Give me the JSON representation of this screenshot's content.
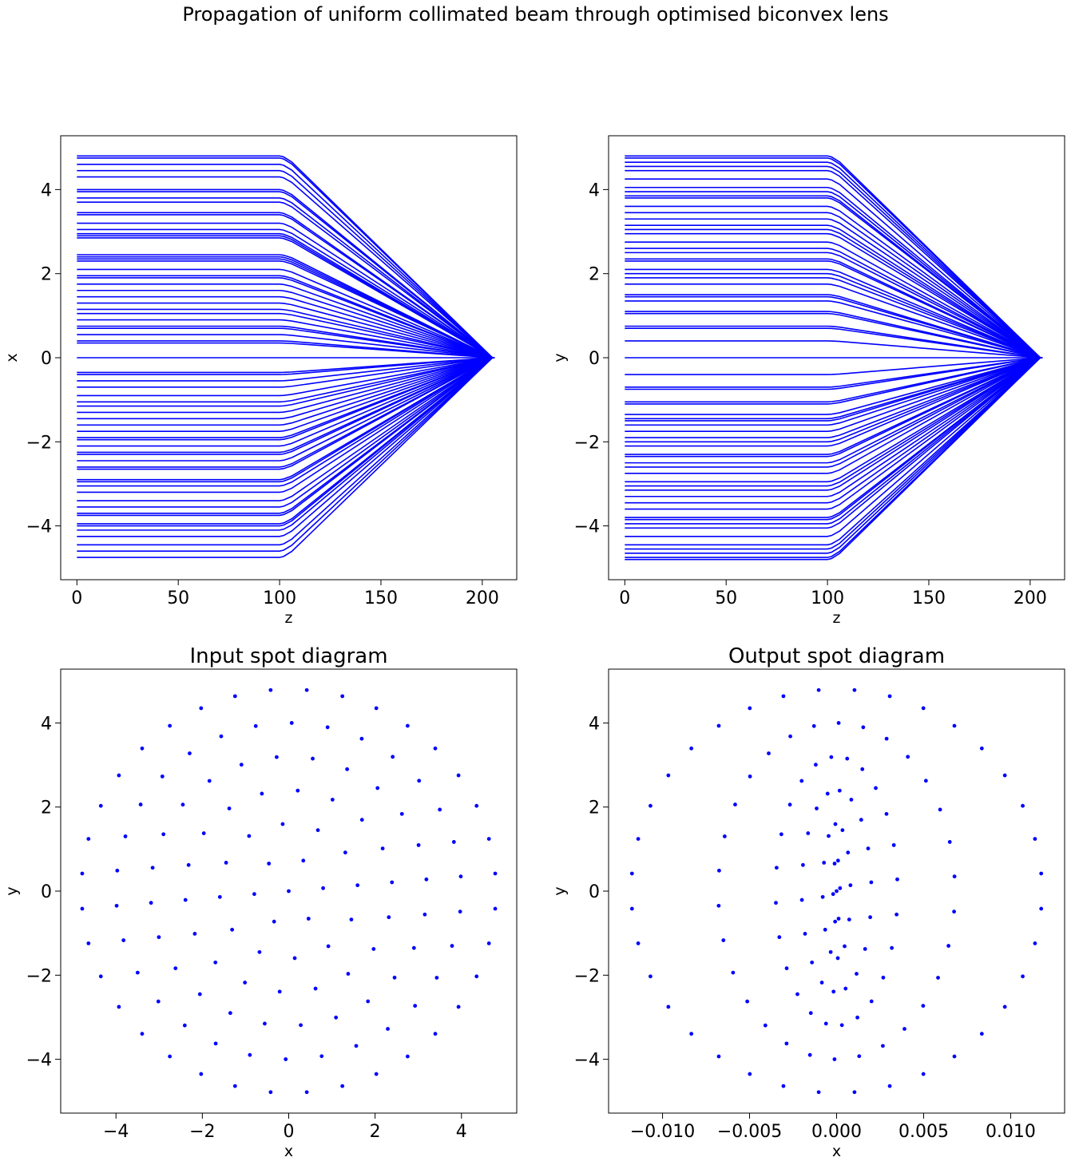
{
  "figure": {
    "title": "Propagation of uniform collimated beam through optimised biconvex lens"
  },
  "colors": {
    "rays": "#0000ff",
    "axes": "#000000",
    "background": "#ffffff"
  },
  "chart_data": [
    {
      "type": "line",
      "title": "",
      "xlabel": "z",
      "ylabel": "x",
      "xlim": [
        -8,
        217
      ],
      "ylim": [
        -5.28,
        5.28
      ],
      "xticks": [
        0,
        50,
        100,
        150,
        200
      ],
      "xtick_labels": [
        "0",
        "50",
        "100",
        "150",
        "200"
      ],
      "yticks": [
        -4,
        -2,
        0,
        2,
        4
      ],
      "ytick_labels": [
        "−4",
        "−2",
        "0",
        "2",
        "4"
      ],
      "grid": false,
      "legend": "none",
      "ray_model": {
        "z_input": 0,
        "z_lens_front": 100,
        "z_lens_back": 106,
        "z_focus": 205,
        "note_values": "each series line starts at its x-height at z=0, stays flat to z=100, bends through the lens and converges to x=0 at z=205"
      },
      "series_heights": [
        4.8,
        4.75,
        4.6,
        4.45,
        4.3,
        4.0,
        3.95,
        3.8,
        3.7,
        3.45,
        3.4,
        3.2,
        3.05,
        2.95,
        2.9,
        2.85,
        2.45,
        2.4,
        2.35,
        2.3,
        2.1,
        1.95,
        1.9,
        1.75,
        1.6,
        1.45,
        1.3,
        1.15,
        1.05,
        0.9,
        0.75,
        0.7,
        0.55,
        0.4,
        0.35,
        0.0,
        -0.35,
        -0.4,
        -0.55,
        -0.7,
        -0.9,
        -1.05,
        -1.15,
        -1.3,
        -1.45,
        -1.6,
        -1.75,
        -1.9,
        -1.95,
        -2.1,
        -2.25,
        -2.3,
        -2.45,
        -2.6,
        -2.65,
        -2.9,
        -2.95,
        -3.05,
        -3.2,
        -3.4,
        -3.55,
        -3.7,
        -3.75,
        -3.95,
        -4.0,
        -4.1,
        -4.25,
        -4.45,
        -4.6,
        -4.75
      ]
    },
    {
      "type": "line",
      "title": "",
      "xlabel": "z",
      "ylabel": "y",
      "xlim": [
        -8,
        217
      ],
      "ylim": [
        -5.28,
        5.28
      ],
      "xticks": [
        0,
        50,
        100,
        150,
        200
      ],
      "xtick_labels": [
        "0",
        "50",
        "100",
        "150",
        "200"
      ],
      "yticks": [
        -4,
        -2,
        0,
        2,
        4
      ],
      "ytick_labels": [
        "−4",
        "−2",
        "0",
        "2",
        "4"
      ],
      "grid": false,
      "legend": "none",
      "ray_model": {
        "z_input": 0,
        "z_lens_front": 100,
        "z_lens_back": 106,
        "z_focus": 205,
        "note_values": "each series line starts at its y-height at z=0, stays flat to z=100, bends through the lens and converges to y=0 at z=205"
      },
      "series_heights": [
        4.8,
        4.75,
        4.65,
        4.55,
        4.45,
        4.25,
        4.05,
        3.95,
        3.85,
        3.8,
        3.6,
        3.45,
        3.3,
        3.15,
        3.05,
        2.95,
        2.75,
        2.6,
        2.5,
        2.35,
        2.3,
        2.1,
        2.0,
        1.9,
        1.75,
        1.5,
        1.45,
        1.35,
        1.1,
        1.05,
        0.75,
        0.7,
        0.4,
        0.0,
        -0.4,
        -0.7,
        -0.75,
        -1.05,
        -1.1,
        -1.35,
        -1.45,
        -1.5,
        -1.6,
        -1.75,
        -1.9,
        -2.0,
        -2.1,
        -2.3,
        -2.35,
        -2.5,
        -2.6,
        -2.75,
        -2.95,
        -3.05,
        -3.15,
        -3.3,
        -3.45,
        -3.6,
        -3.8,
        -3.85,
        -3.95,
        -4.05,
        -4.25,
        -4.45,
        -4.55,
        -4.65,
        -4.75,
        -4.8
      ]
    },
    {
      "type": "scatter",
      "title": "Input spot diagram",
      "xlabel": "x",
      "ylabel": "y",
      "xlim": [
        -5.28,
        5.28
      ],
      "ylim": [
        -5.28,
        5.28
      ],
      "xticks": [
        -4,
        -2,
        0,
        2,
        4
      ],
      "xtick_labels": [
        "−4",
        "−2",
        "0",
        "2",
        "4"
      ],
      "yticks": [
        -4,
        -2,
        0,
        2,
        4
      ],
      "ytick_labels": [
        "−4",
        "−2",
        "0",
        "2",
        "4"
      ],
      "grid": false,
      "legend": "none",
      "rings": [
        {
          "radius": 0.8,
          "count": 6
        },
        {
          "radius": 1.6,
          "count": 12
        },
        {
          "radius": 2.4,
          "count": 18
        },
        {
          "radius": 3.2,
          "count": 24
        },
        {
          "radius": 4.0,
          "count": 30
        },
        {
          "radius": 4.8,
          "count": 36
        }
      ],
      "ring_phase_deg": 5,
      "center_point": [
        0,
        0
      ]
    },
    {
      "type": "scatter",
      "title": "Output spot diagram",
      "xlabel": "x",
      "ylabel": "y",
      "xlim": [
        -0.0131,
        0.0131
      ],
      "ylim": [
        -5.28,
        5.28
      ],
      "xticks": [
        -0.01,
        -0.005,
        0.0,
        0.005,
        0.01
      ],
      "xtick_labels": [
        "−0.010",
        "−0.005",
        "0.000",
        "0.005",
        "0.010"
      ],
      "yticks": [
        -4,
        -2,
        0,
        2,
        4
      ],
      "ytick_labels": [
        "−4",
        "−2",
        "0",
        "2",
        "4"
      ],
      "grid": false,
      "legend": "none",
      "rings": [
        {
          "radius_y": 0.8,
          "radius_x": 0.0002,
          "count": 6
        },
        {
          "radius_y": 1.6,
          "radius_x": 0.0008,
          "count": 12
        },
        {
          "radius_y": 2.4,
          "radius_x": 0.002,
          "count": 18
        },
        {
          "radius_y": 3.2,
          "radius_x": 0.0035,
          "count": 24
        },
        {
          "radius_y": 4.0,
          "radius_x": 0.0068,
          "count": 30
        },
        {
          "radius_y": 4.8,
          "radius_x": 0.0118,
          "count": 36
        }
      ],
      "ring_phase_deg": 5,
      "center_point": [
        0,
        0
      ]
    }
  ]
}
